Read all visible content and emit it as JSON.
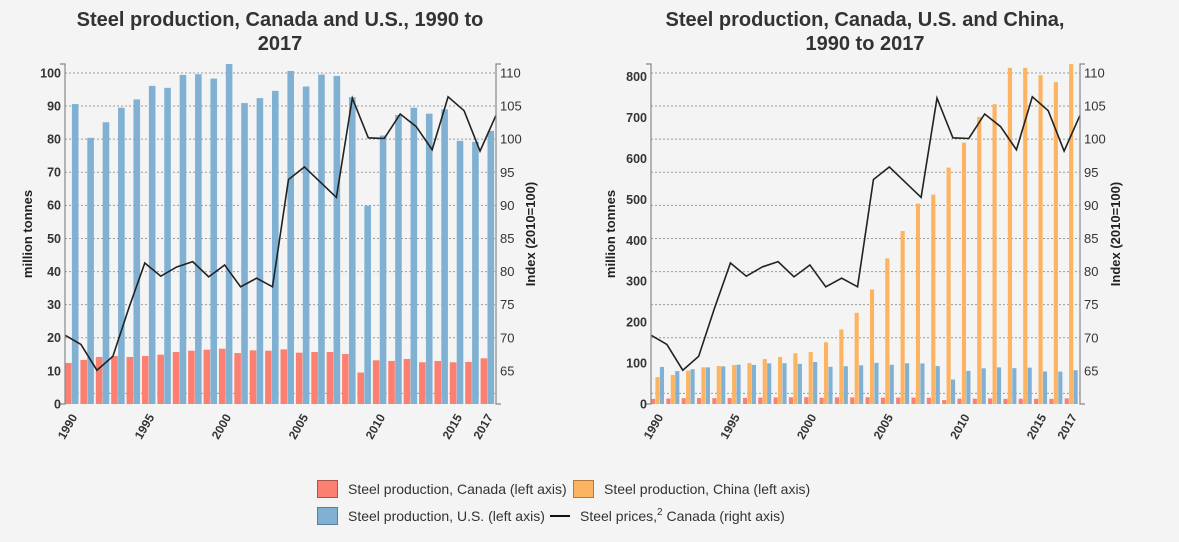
{
  "colors": {
    "canada": "#fb8072",
    "canada_border": "#a9574d",
    "china": "#fdb462",
    "china_border": "#b07a3c",
    "us": "#80b1d3",
    "us_border": "#587e99",
    "price_line": "#222222",
    "grid": "#9a9a9a",
    "axis": "#888888"
  },
  "legend": {
    "canada": "Steel production, Canada (left axis)",
    "china": "Steel production, China (left axis)",
    "us": "Steel production, U.S. (left axis)",
    "price_prefix": "Steel prices,",
    "price_sup": "2",
    "price_suffix": " Canada (right axis)"
  },
  "chart_data": [
    {
      "type": "bar",
      "overlay": "line",
      "title": "Steel production, Canada and U.S., 1990 to 2017",
      "title_lines": [
        "Steel production, Canada and U.S., 1990 to",
        "2017"
      ],
      "xlabel": "",
      "ylabel": "million tonnes",
      "y2label": "Index (2010=100)",
      "categories": [
        1990,
        1991,
        1992,
        1993,
        1994,
        1995,
        1996,
        1997,
        1998,
        1999,
        2000,
        2001,
        2002,
        2003,
        2004,
        2005,
        2006,
        2007,
        2008,
        2009,
        2010,
        2011,
        2012,
        2013,
        2014,
        2015,
        2016,
        2017
      ],
      "xticks": [
        "1990",
        "1995",
        "2000",
        "2005",
        "2010",
        "2015",
        "2017"
      ],
      "ylim": [
        0,
        102.7
      ],
      "yticks": [
        0,
        10,
        20,
        30,
        40,
        50,
        60,
        70,
        80,
        90,
        100
      ],
      "y2lim": [
        60,
        111.35
      ],
      "y2ticks": [
        65,
        70,
        75,
        80,
        85,
        90,
        95,
        100,
        105,
        110
      ],
      "grid": true,
      "grid_y2": [
        61.6,
        70,
        75,
        80,
        85,
        90,
        95,
        100,
        105,
        110
      ],
      "legend": "bottom-center",
      "series": [
        {
          "name": "Steel production, Canada",
          "type": "bar",
          "axis": "left",
          "color_key": "canada",
          "values": [
            12.4,
            13.3,
            14.2,
            14.5,
            14.2,
            14.5,
            14.9,
            15.7,
            16.1,
            16.4,
            16.7,
            15.4,
            16.2,
            16.1,
            16.5,
            15.5,
            15.7,
            15.7,
            15.1,
            9.5,
            13.2,
            13.0,
            13.6,
            12.6,
            13.0,
            12.6,
            12.7,
            13.8
          ]
        },
        {
          "name": "Steel production, U.S.",
          "type": "bar",
          "axis": "left",
          "color_key": "us",
          "values": [
            90.6,
            80.4,
            85.1,
            89.5,
            92.0,
            96.1,
            95.5,
            99.4,
            99.6,
            98.3,
            102.7,
            90.9,
            92.4,
            94.6,
            100.6,
            95.9,
            99.5,
            99.1,
            92.7,
            59.9,
            81.1,
            87.3,
            89.5,
            87.7,
            89.0,
            79.5,
            79.2,
            82.5
          ]
        },
        {
          "name": "Steel prices, Canada",
          "type": "line",
          "axis": "right",
          "color_key": "price_line",
          "values": [
            70.4,
            69.0,
            65.1,
            67.2,
            74.5,
            81.3,
            79.3,
            80.7,
            81.5,
            79.2,
            81.0,
            77.7,
            79.0,
            77.7,
            93.9,
            95.8,
            93.5,
            91.2,
            106.2,
            100.2,
            100.1,
            103.8,
            101.9,
            98.4,
            106.4,
            104.3,
            98.2,
            103.6
          ]
        }
      ]
    },
    {
      "type": "bar",
      "overlay": "line",
      "title": "Steel production, Canada, U.S. and China, 1990 to 2017",
      "title_lines": [
        "Steel production, Canada, U.S. and China,",
        "1990 to 2017"
      ],
      "xlabel": "",
      "ylabel": "million tonnes",
      "y2label": "Index (2010=100)",
      "categories": [
        1990,
        1991,
        1992,
        1993,
        1994,
        1995,
        1996,
        1997,
        1998,
        1999,
        2000,
        2001,
        2002,
        2003,
        2004,
        2005,
        2006,
        2007,
        2008,
        2009,
        2010,
        2011,
        2012,
        2013,
        2014,
        2015,
        2016,
        2017
      ],
      "xticks": [
        "1990",
        "1995",
        "2000",
        "2005",
        "2010",
        "2015",
        "2017"
      ],
      "ylim": [
        0,
        831.3
      ],
      "yticks": [
        0,
        100,
        200,
        300,
        400,
        500,
        600,
        700,
        800
      ],
      "y2lim": [
        60,
        111.35
      ],
      "y2ticks": [
        65,
        70,
        75,
        80,
        85,
        90,
        95,
        100,
        105,
        110
      ],
      "grid": true,
      "grid_y2": [
        61.6,
        70,
        75,
        80,
        85,
        90,
        95,
        100,
        105,
        110
      ],
      "legend": "bottom-center",
      "series": [
        {
          "name": "Steel production, Canada",
          "type": "bar",
          "axis": "left",
          "color_key": "canada",
          "values": [
            12.4,
            13.3,
            14.2,
            14.5,
            14.2,
            14.5,
            14.9,
            15.7,
            16.1,
            16.4,
            16.7,
            15.4,
            16.2,
            16.1,
            16.5,
            15.5,
            15.7,
            15.7,
            15.1,
            9.5,
            13.2,
            13.0,
            13.6,
            12.6,
            13.0,
            12.6,
            12.7,
            13.8
          ]
        },
        {
          "name": "Steel production, China",
          "type": "bar",
          "axis": "left",
          "color_key": "china",
          "values": [
            66,
            71,
            81.5,
            89.7,
            92.9,
            95.4,
            100,
            110,
            115,
            124,
            127,
            151,
            182.5,
            223,
            280,
            356,
            423,
            490,
            512,
            578,
            639,
            702,
            733,
            822,
            822,
            804,
            787,
            831
          ]
        },
        {
          "name": "Steel production, U.S.",
          "type": "bar",
          "axis": "left",
          "color_key": "us",
          "values": [
            90.6,
            80.4,
            85.1,
            89.5,
            92.0,
            96.1,
            95.5,
            99.4,
            99.6,
            98.3,
            102.7,
            90.9,
            92.4,
            94.6,
            100.6,
            95.9,
            99.5,
            99.1,
            92.7,
            59.9,
            81.1,
            87.3,
            89.5,
            87.7,
            89.0,
            79.5,
            79.2,
            82.5
          ]
        },
        {
          "name": "Steel prices, Canada",
          "type": "line",
          "axis": "right",
          "color_key": "price_line",
          "values": [
            70.4,
            69.0,
            65.1,
            67.2,
            74.5,
            81.3,
            79.3,
            80.7,
            81.5,
            79.2,
            81.0,
            77.7,
            79.0,
            77.7,
            93.9,
            95.8,
            93.5,
            91.2,
            106.2,
            100.2,
            100.1,
            103.8,
            101.9,
            98.4,
            106.4,
            104.3,
            98.2,
            103.6
          ]
        }
      ]
    }
  ]
}
